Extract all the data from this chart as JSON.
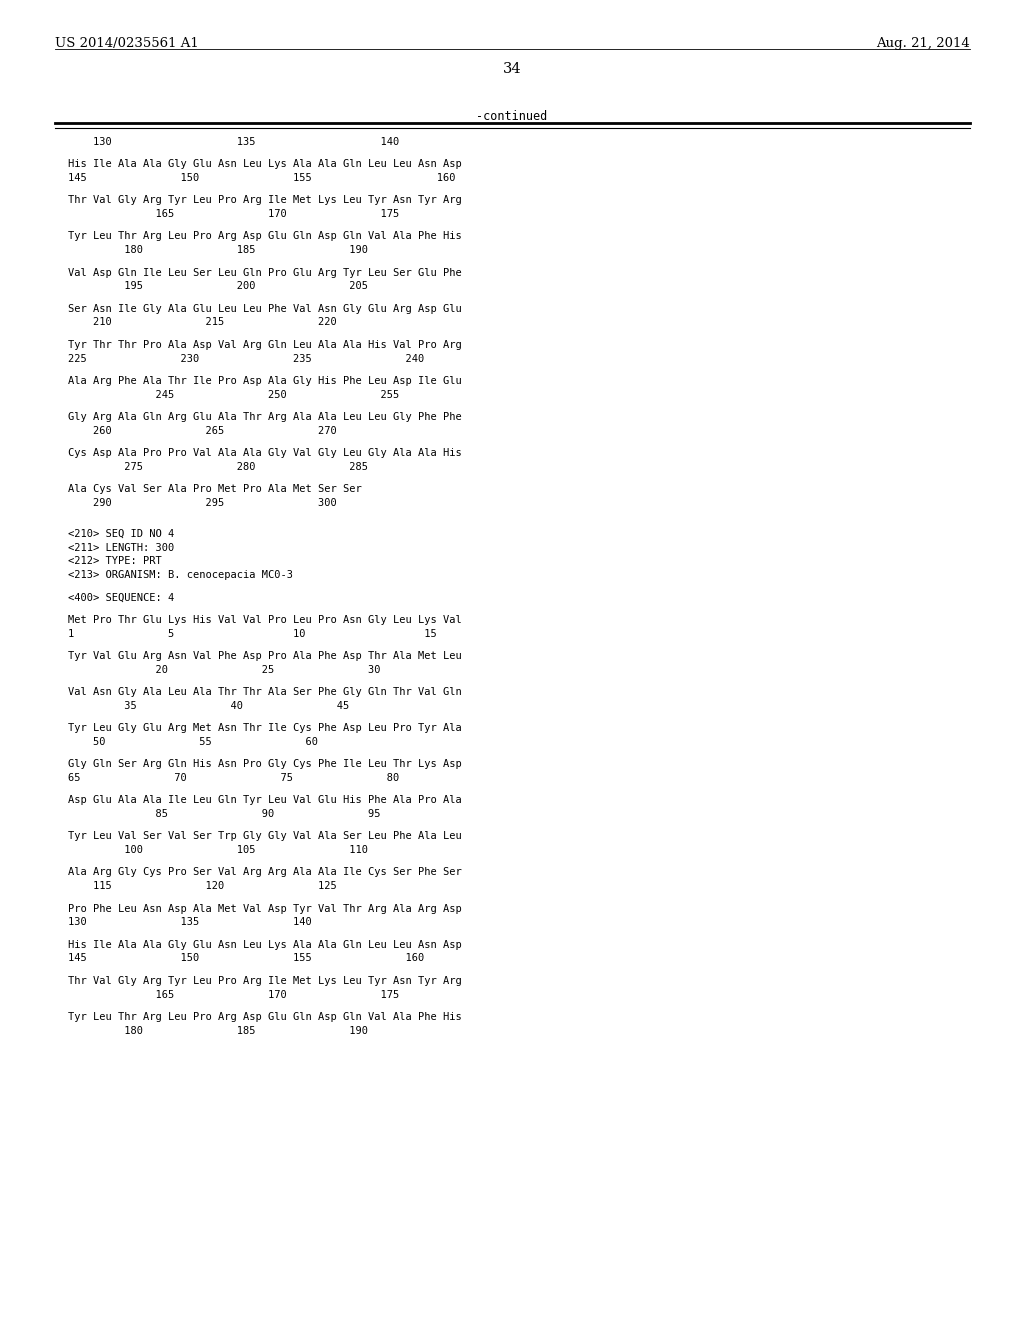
{
  "header_left": "US 2014/0235561 A1",
  "header_right": "Aug. 21, 2014",
  "page_number": "34",
  "continued_label": "-continued",
  "background_color": "#ffffff",
  "text_color": "#000000",
  "font_size": 7.5,
  "header_font_size": 9.5,
  "page_num_font_size": 10.5,
  "content_lines": [
    {
      "type": "ruler",
      "text": "    130                    135                    140"
    },
    {
      "type": "blank"
    },
    {
      "type": "seq",
      "text": "His Ile Ala Ala Gly Glu Asn Leu Lys Ala Ala Gln Leu Leu Asn Asp"
    },
    {
      "type": "num",
      "text": "145               150               155                    160"
    },
    {
      "type": "blank"
    },
    {
      "type": "seq",
      "text": "Thr Val Gly Arg Tyr Leu Pro Arg Ile Met Lys Leu Tyr Asn Tyr Arg"
    },
    {
      "type": "num",
      "text": "              165               170               175"
    },
    {
      "type": "blank"
    },
    {
      "type": "seq",
      "text": "Tyr Leu Thr Arg Leu Pro Arg Asp Glu Gln Asp Gln Val Ala Phe His"
    },
    {
      "type": "num",
      "text": "         180               185               190"
    },
    {
      "type": "blank"
    },
    {
      "type": "seq",
      "text": "Val Asp Gln Ile Leu Ser Leu Gln Pro Glu Arg Tyr Leu Ser Glu Phe"
    },
    {
      "type": "num",
      "text": "         195               200               205"
    },
    {
      "type": "blank"
    },
    {
      "type": "seq",
      "text": "Ser Asn Ile Gly Ala Glu Leu Leu Phe Val Asn Gly Glu Arg Asp Glu"
    },
    {
      "type": "num",
      "text": "    210               215               220"
    },
    {
      "type": "blank"
    },
    {
      "type": "seq",
      "text": "Tyr Thr Thr Pro Ala Asp Val Arg Gln Leu Ala Ala His Val Pro Arg"
    },
    {
      "type": "num",
      "text": "225               230               235               240"
    },
    {
      "type": "blank"
    },
    {
      "type": "seq",
      "text": "Ala Arg Phe Ala Thr Ile Pro Asp Ala Gly His Phe Leu Asp Ile Glu"
    },
    {
      "type": "num",
      "text": "              245               250               255"
    },
    {
      "type": "blank"
    },
    {
      "type": "seq",
      "text": "Gly Arg Ala Gln Arg Glu Ala Thr Arg Ala Ala Leu Leu Gly Phe Phe"
    },
    {
      "type": "num",
      "text": "    260               265               270"
    },
    {
      "type": "blank"
    },
    {
      "type": "seq",
      "text": "Cys Asp Ala Pro Pro Val Ala Ala Gly Val Gly Leu Gly Ala Ala His"
    },
    {
      "type": "num",
      "text": "         275               280               285"
    },
    {
      "type": "blank"
    },
    {
      "type": "seq",
      "text": "Ala Cys Val Ser Ala Pro Met Pro Ala Met Ser Ser"
    },
    {
      "type": "num",
      "text": "    290               295               300"
    },
    {
      "type": "blank"
    },
    {
      "type": "blank"
    },
    {
      "type": "meta",
      "text": "<210> SEQ ID NO 4"
    },
    {
      "type": "meta",
      "text": "<211> LENGTH: 300"
    },
    {
      "type": "meta",
      "text": "<212> TYPE: PRT"
    },
    {
      "type": "meta",
      "text": "<213> ORGANISM: B. cenocepacia MC0-3"
    },
    {
      "type": "blank"
    },
    {
      "type": "meta",
      "text": "<400> SEQUENCE: 4"
    },
    {
      "type": "blank"
    },
    {
      "type": "seq",
      "text": "Met Pro Thr Glu Lys His Val Val Pro Leu Pro Asn Gly Leu Lys Val"
    },
    {
      "type": "num",
      "text": "1               5                   10                   15"
    },
    {
      "type": "blank"
    },
    {
      "type": "seq",
      "text": "Tyr Val Glu Arg Asn Val Phe Asp Pro Ala Phe Asp Thr Ala Met Leu"
    },
    {
      "type": "num",
      "text": "              20               25               30"
    },
    {
      "type": "blank"
    },
    {
      "type": "seq",
      "text": "Val Asn Gly Ala Leu Ala Thr Thr Ala Ser Phe Gly Gln Thr Val Gln"
    },
    {
      "type": "num",
      "text": "         35               40               45"
    },
    {
      "type": "blank"
    },
    {
      "type": "seq",
      "text": "Tyr Leu Gly Glu Arg Met Asn Thr Ile Cys Phe Asp Leu Pro Tyr Ala"
    },
    {
      "type": "num",
      "text": "    50               55               60"
    },
    {
      "type": "blank"
    },
    {
      "type": "seq",
      "text": "Gly Gln Ser Arg Gln His Asn Pro Gly Cys Phe Ile Leu Thr Lys Asp"
    },
    {
      "type": "num",
      "text": "65               70               75               80"
    },
    {
      "type": "blank"
    },
    {
      "type": "seq",
      "text": "Asp Glu Ala Ala Ile Leu Gln Tyr Leu Val Glu His Phe Ala Pro Ala"
    },
    {
      "type": "num",
      "text": "              85               90               95"
    },
    {
      "type": "blank"
    },
    {
      "type": "seq",
      "text": "Tyr Leu Val Ser Val Ser Trp Gly Gly Val Ala Ser Leu Phe Ala Leu"
    },
    {
      "type": "num",
      "text": "         100               105               110"
    },
    {
      "type": "blank"
    },
    {
      "type": "seq",
      "text": "Ala Arg Gly Cys Pro Ser Val Arg Arg Ala Ala Ile Cys Ser Phe Ser"
    },
    {
      "type": "num",
      "text": "    115               120               125"
    },
    {
      "type": "blank"
    },
    {
      "type": "seq",
      "text": "Pro Phe Leu Asn Asp Ala Met Val Asp Tyr Val Thr Arg Ala Arg Asp"
    },
    {
      "type": "num",
      "text": "130               135               140"
    },
    {
      "type": "blank"
    },
    {
      "type": "seq",
      "text": "His Ile Ala Ala Gly Glu Asn Leu Lys Ala Ala Gln Leu Leu Asn Asp"
    },
    {
      "type": "num",
      "text": "145               150               155               160"
    },
    {
      "type": "blank"
    },
    {
      "type": "seq",
      "text": "Thr Val Gly Arg Tyr Leu Pro Arg Ile Met Lys Leu Tyr Asn Tyr Arg"
    },
    {
      "type": "num",
      "text": "              165               170               175"
    },
    {
      "type": "blank"
    },
    {
      "type": "seq",
      "text": "Tyr Leu Thr Arg Leu Pro Arg Asp Glu Gln Asp Gln Val Ala Phe His"
    },
    {
      "type": "num",
      "text": "         180               185               190"
    }
  ]
}
